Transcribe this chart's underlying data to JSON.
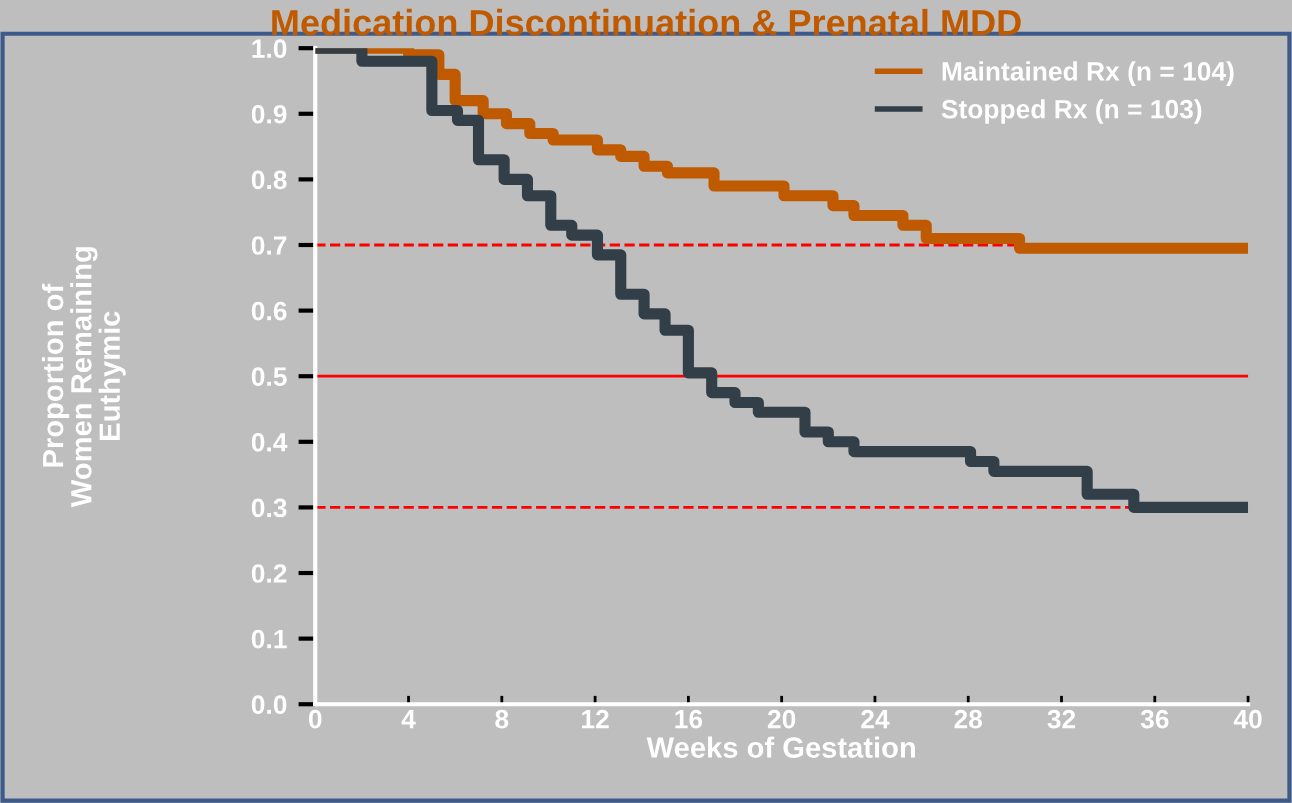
{
  "chart_data": {
    "type": "step",
    "title": "Medication Discontinuation & Prenatal MDD",
    "xlabel": "Weeks of Gestation",
    "ylabel": "Proportion of\nWomen Remaining\nEuthymic",
    "xlim": [
      0,
      40
    ],
    "xticks": [
      0,
      4,
      8,
      12,
      16,
      20,
      24,
      28,
      32,
      36,
      40
    ],
    "ylim": [
      0,
      1.0
    ],
    "yticks": [
      {
        "value": 0,
        "label": "0.0"
      },
      0.1,
      0.2,
      0.3,
      0.4,
      0.5,
      0.6,
      0.7,
      0.8,
      0.9,
      {
        "value": 1,
        "label": "1.0"
      }
    ],
    "grid": false,
    "legend": "top right",
    "line_style": "solid",
    "marker": "none",
    "series": [
      {
        "name": "Maintained Rx (n = 104)",
        "color": "#c05a00",
        "x": [
          0,
          4.0,
          5.3,
          6.0,
          7.2,
          8.2,
          9.2,
          10.2,
          12.1,
          13.1,
          14.1,
          15.1,
          17.1,
          20.1,
          22.2,
          23.1,
          25.2,
          26.2,
          30.2,
          40
        ],
        "values": [
          1.0,
          0.99,
          0.96,
          0.92,
          0.9,
          0.885,
          0.87,
          0.86,
          0.845,
          0.835,
          0.82,
          0.81,
          0.79,
          0.775,
          0.76,
          0.745,
          0.73,
          0.71,
          0.695,
          0.695
        ]
      },
      {
        "name": "Stopped Rx (n = 103)",
        "color": "#323e48",
        "x": [
          0,
          2.0,
          5.0,
          6.1,
          7.0,
          8.1,
          9.1,
          10.1,
          11.0,
          12.1,
          13.1,
          14.1,
          15.0,
          16.0,
          17.0,
          18.0,
          19.0,
          21.0,
          22.0,
          23.1,
          28.1,
          29.1,
          33.1,
          35.1,
          40
        ],
        "values": [
          1.0,
          0.98,
          0.905,
          0.89,
          0.83,
          0.8,
          0.775,
          0.73,
          0.715,
          0.685,
          0.625,
          0.595,
          0.57,
          0.505,
          0.475,
          0.46,
          0.445,
          0.415,
          0.4,
          0.385,
          0.37,
          0.355,
          0.32,
          0.3,
          0.3
        ]
      }
    ],
    "ref_lines": [
      {
        "axis": "y",
        "value": 0.7,
        "color": "#ff0000",
        "line_style": "dashed"
      },
      {
        "axis": "y",
        "value": 0.5,
        "color": "#ff0000",
        "line_style": "solid"
      },
      {
        "axis": "y",
        "value": 0.3,
        "color": "#ff0000",
        "line_style": "dashed"
      }
    ]
  }
}
